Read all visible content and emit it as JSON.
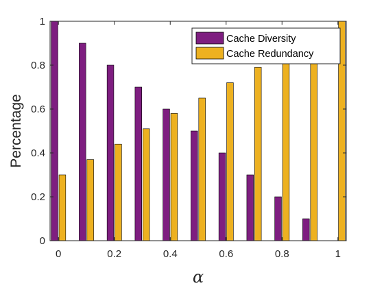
{
  "chart_data": {
    "type": "bar",
    "xlabel": "α",
    "ylabel": "Percentage",
    "x": [
      0,
      0.1,
      0.2,
      0.3,
      0.4,
      0.5,
      0.6,
      0.7,
      0.8,
      0.9,
      1.0
    ],
    "xlim": [
      -0.03,
      1.03
    ],
    "ylim": [
      0,
      1
    ],
    "xticks": [
      0,
      0.2,
      0.4,
      0.6,
      0.8,
      1
    ],
    "xtick_labels": [
      "0",
      "0.2",
      "0.4",
      "0.6",
      "0.8",
      "1"
    ],
    "yticks": [
      0,
      0.2,
      0.4,
      0.6,
      0.8,
      1
    ],
    "ytick_labels": [
      "0",
      "0.2",
      "0.4",
      "0.6",
      "0.8",
      "1"
    ],
    "grid": false,
    "legend_position": "top-right",
    "series": [
      {
        "name": "Cache Diversity",
        "color": "#7e1e80",
        "values": [
          1.0,
          0.9,
          0.8,
          0.7,
          0.6,
          0.5,
          0.4,
          0.3,
          0.2,
          0.1,
          0.0
        ]
      },
      {
        "name": "Cache Redundancy",
        "color": "#edb120",
        "values": [
          0.3,
          0.37,
          0.44,
          0.51,
          0.58,
          0.65,
          0.72,
          0.79,
          0.86,
          0.93,
          1.0
        ]
      }
    ]
  }
}
